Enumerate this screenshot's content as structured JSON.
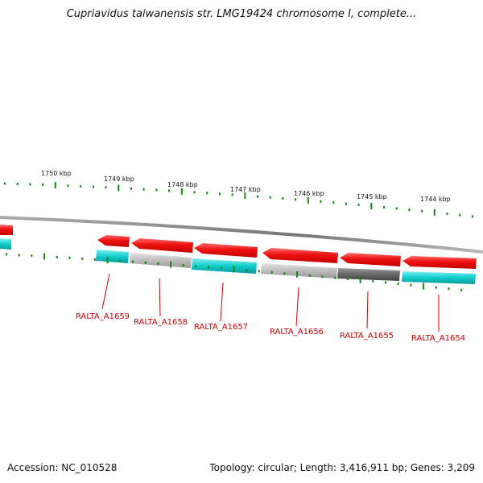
{
  "title": "Cupriavidus taiwanensis str. LMG19424 chromosome I, complete...",
  "footer": {
    "accession": "Accession: NC_010528",
    "summary": "Topology: circular; Length: 3,416,911 bp; Genes: 3,209"
  },
  "scale": {
    "unit": "kbp",
    "labels": [
      "1750 kbp",
      "1749 kbp",
      "1748 kbp",
      "1747 kbp",
      "1746 kbp",
      "1745 kbp",
      "1744 kbp"
    ]
  },
  "genes": [
    {
      "id": "RALTA_A1659",
      "label": "RALTA_A1659"
    },
    {
      "id": "RALTA_A1658",
      "label": "RALTA_A1658"
    },
    {
      "id": "RALTA_A1657",
      "label": "RALTA_A1657"
    },
    {
      "id": "RALTA_A1656",
      "label": "RALTA_A1656"
    },
    {
      "id": "RALTA_A1655",
      "label": "RALTA_A1655"
    },
    {
      "id": "RALTA_A1654",
      "label": "RALTA_A1654"
    }
  ],
  "colors": {
    "cds": "#ee1111",
    "gene_cyan": "#11cccc",
    "gene_light_gray": "#bbbbbb",
    "gene_dark_gray": "#666666",
    "label": "#cc0000",
    "tick": "#118811",
    "backbone": "#888888"
  }
}
